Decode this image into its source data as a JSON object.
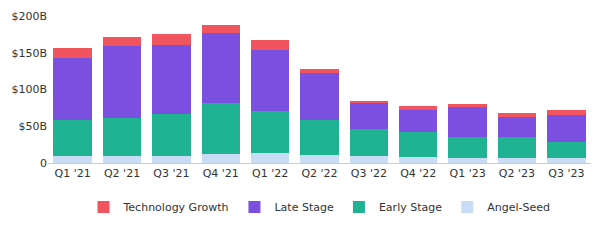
{
  "chart_data": {
    "type": "bar",
    "stacked": true,
    "categories": [
      "Q1 '21",
      "Q2 '21",
      "Q3 '21",
      "Q4 '21",
      "Q1 '22",
      "Q2 '22",
      "Q3 '22",
      "Q4 '22",
      "Q1 '23",
      "Q2 '23",
      "Q3 '23"
    ],
    "series": [
      {
        "name": "Angel-Seed",
        "color": "#c9dcf5",
        "values": [
          9,
          10,
          9,
          12,
          13,
          11,
          9,
          8,
          7,
          7,
          7
        ]
      },
      {
        "name": "Early Stage",
        "color": "#1fb394",
        "values": [
          50,
          51,
          58,
          69,
          58,
          48,
          37,
          34,
          28,
          28,
          22
        ]
      },
      {
        "name": "Late Stage",
        "color": "#7b4fe0",
        "values": [
          84,
          98,
          94,
          96,
          83,
          63,
          36,
          30,
          41,
          27,
          36
        ]
      },
      {
        "name": "Technology Growth",
        "color": "#f0555f",
        "values": [
          14,
          12,
          14,
          11,
          14,
          6,
          3,
          5,
          4,
          6,
          7
        ]
      }
    ],
    "ylim": [
      0,
      200
    ],
    "yticks": [
      0,
      {
        "value": 50,
        "label": "$50B"
      },
      {
        "value": 100,
        "label": "$100B"
      },
      {
        "value": 150,
        "label": "$150B"
      },
      {
        "value": 200,
        "label": "$200B"
      }
    ],
    "grid": false,
    "legend": "bottom"
  }
}
